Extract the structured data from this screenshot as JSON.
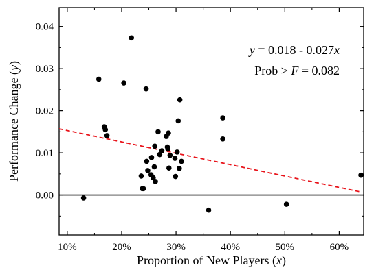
{
  "chart_data": {
    "type": "scatter",
    "xlabel": "Proportion of New Players (x)",
    "xlabel_parts": [
      {
        "text": "Proportion of New Players (",
        "italic": false
      },
      {
        "text": "x",
        "italic": true
      },
      {
        "text": ")",
        "italic": false
      }
    ],
    "ylabel": "Performance Change (y)",
    "ylabel_parts": [
      {
        "text": "Performance Change (",
        "italic": false
      },
      {
        "text": "y",
        "italic": true
      },
      {
        "text": ")",
        "italic": false
      }
    ],
    "xlim": [
      0.085,
      0.645
    ],
    "ylim": [
      -0.0095,
      0.0445
    ],
    "x_ticks": [
      {
        "value": 0.1,
        "label": "10%"
      },
      {
        "value": 0.2,
        "label": "20%"
      },
      {
        "value": 0.3,
        "label": "30%"
      },
      {
        "value": 0.4,
        "label": "40%"
      },
      {
        "value": 0.5,
        "label": "50%"
      },
      {
        "value": 0.6,
        "label": "60%"
      }
    ],
    "y_ticks": [
      {
        "value": 0.0,
        "label": "0.00"
      },
      {
        "value": 0.01,
        "label": "0.01"
      },
      {
        "value": 0.02,
        "label": "0.02"
      },
      {
        "value": 0.03,
        "label": "0.03"
      },
      {
        "value": 0.04,
        "label": "0.04"
      }
    ],
    "grid": false,
    "zero_line": true,
    "points": [
      {
        "x": 0.13,
        "y": -0.0007
      },
      {
        "x": 0.158,
        "y": 0.0275
      },
      {
        "x": 0.168,
        "y": 0.0162
      },
      {
        "x": 0.17,
        "y": 0.0155
      },
      {
        "x": 0.173,
        "y": 0.0141
      },
      {
        "x": 0.204,
        "y": 0.0266
      },
      {
        "x": 0.218,
        "y": 0.0373
      },
      {
        "x": 0.236,
        "y": 0.0045
      },
      {
        "x": 0.238,
        "y": 0.0015
      },
      {
        "x": 0.24,
        "y": 0.0015
      },
      {
        "x": 0.245,
        "y": 0.0252
      },
      {
        "x": 0.246,
        "y": 0.008
      },
      {
        "x": 0.248,
        "y": 0.0058
      },
      {
        "x": 0.254,
        "y": 0.0048
      },
      {
        "x": 0.255,
        "y": 0.0089
      },
      {
        "x": 0.258,
        "y": 0.0041
      },
      {
        "x": 0.26,
        "y": 0.0067
      },
      {
        "x": 0.261,
        "y": 0.0116
      },
      {
        "x": 0.262,
        "y": 0.0032
      },
      {
        "x": 0.267,
        "y": 0.015
      },
      {
        "x": 0.27,
        "y": 0.0096
      },
      {
        "x": 0.274,
        "y": 0.0105
      },
      {
        "x": 0.282,
        "y": 0.0139
      },
      {
        "x": 0.284,
        "y": 0.0114
      },
      {
        "x": 0.285,
        "y": 0.0109
      },
      {
        "x": 0.286,
        "y": 0.0147
      },
      {
        "x": 0.287,
        "y": 0.0064
      },
      {
        "x": 0.289,
        "y": 0.0094
      },
      {
        "x": 0.298,
        "y": 0.0087
      },
      {
        "x": 0.299,
        "y": 0.0044
      },
      {
        "x": 0.302,
        "y": 0.0102
      },
      {
        "x": 0.304,
        "y": 0.0176
      },
      {
        "x": 0.306,
        "y": 0.0063
      },
      {
        "x": 0.307,
        "y": 0.0226
      },
      {
        "x": 0.31,
        "y": 0.008
      },
      {
        "x": 0.36,
        "y": -0.0036
      },
      {
        "x": 0.386,
        "y": 0.0183
      },
      {
        "x": 0.386,
        "y": 0.0133
      },
      {
        "x": 0.503,
        "y": -0.0022
      },
      {
        "x": 0.64,
        "y": 0.0047
      }
    ],
    "trendline": {
      "intercept": 0.018,
      "slope": -0.027,
      "x_range": [
        0.085,
        0.64
      ],
      "color": "#e8131a",
      "style": "dashed"
    },
    "annotations": [
      {
        "parts": [
          {
            "text": "y",
            "italic": true
          },
          {
            "text": " = 0.018 - 0.027",
            "italic": false
          },
          {
            "text": "x",
            "italic": true
          }
        ]
      },
      {
        "parts": [
          {
            "text": "Prob > ",
            "italic": false
          },
          {
            "text": "F",
            "italic": true
          },
          {
            "text": " = 0.082",
            "italic": false
          }
        ]
      }
    ],
    "colors": {
      "points": "#000000",
      "trendline": "#e8131a",
      "axes": "#000000"
    }
  }
}
